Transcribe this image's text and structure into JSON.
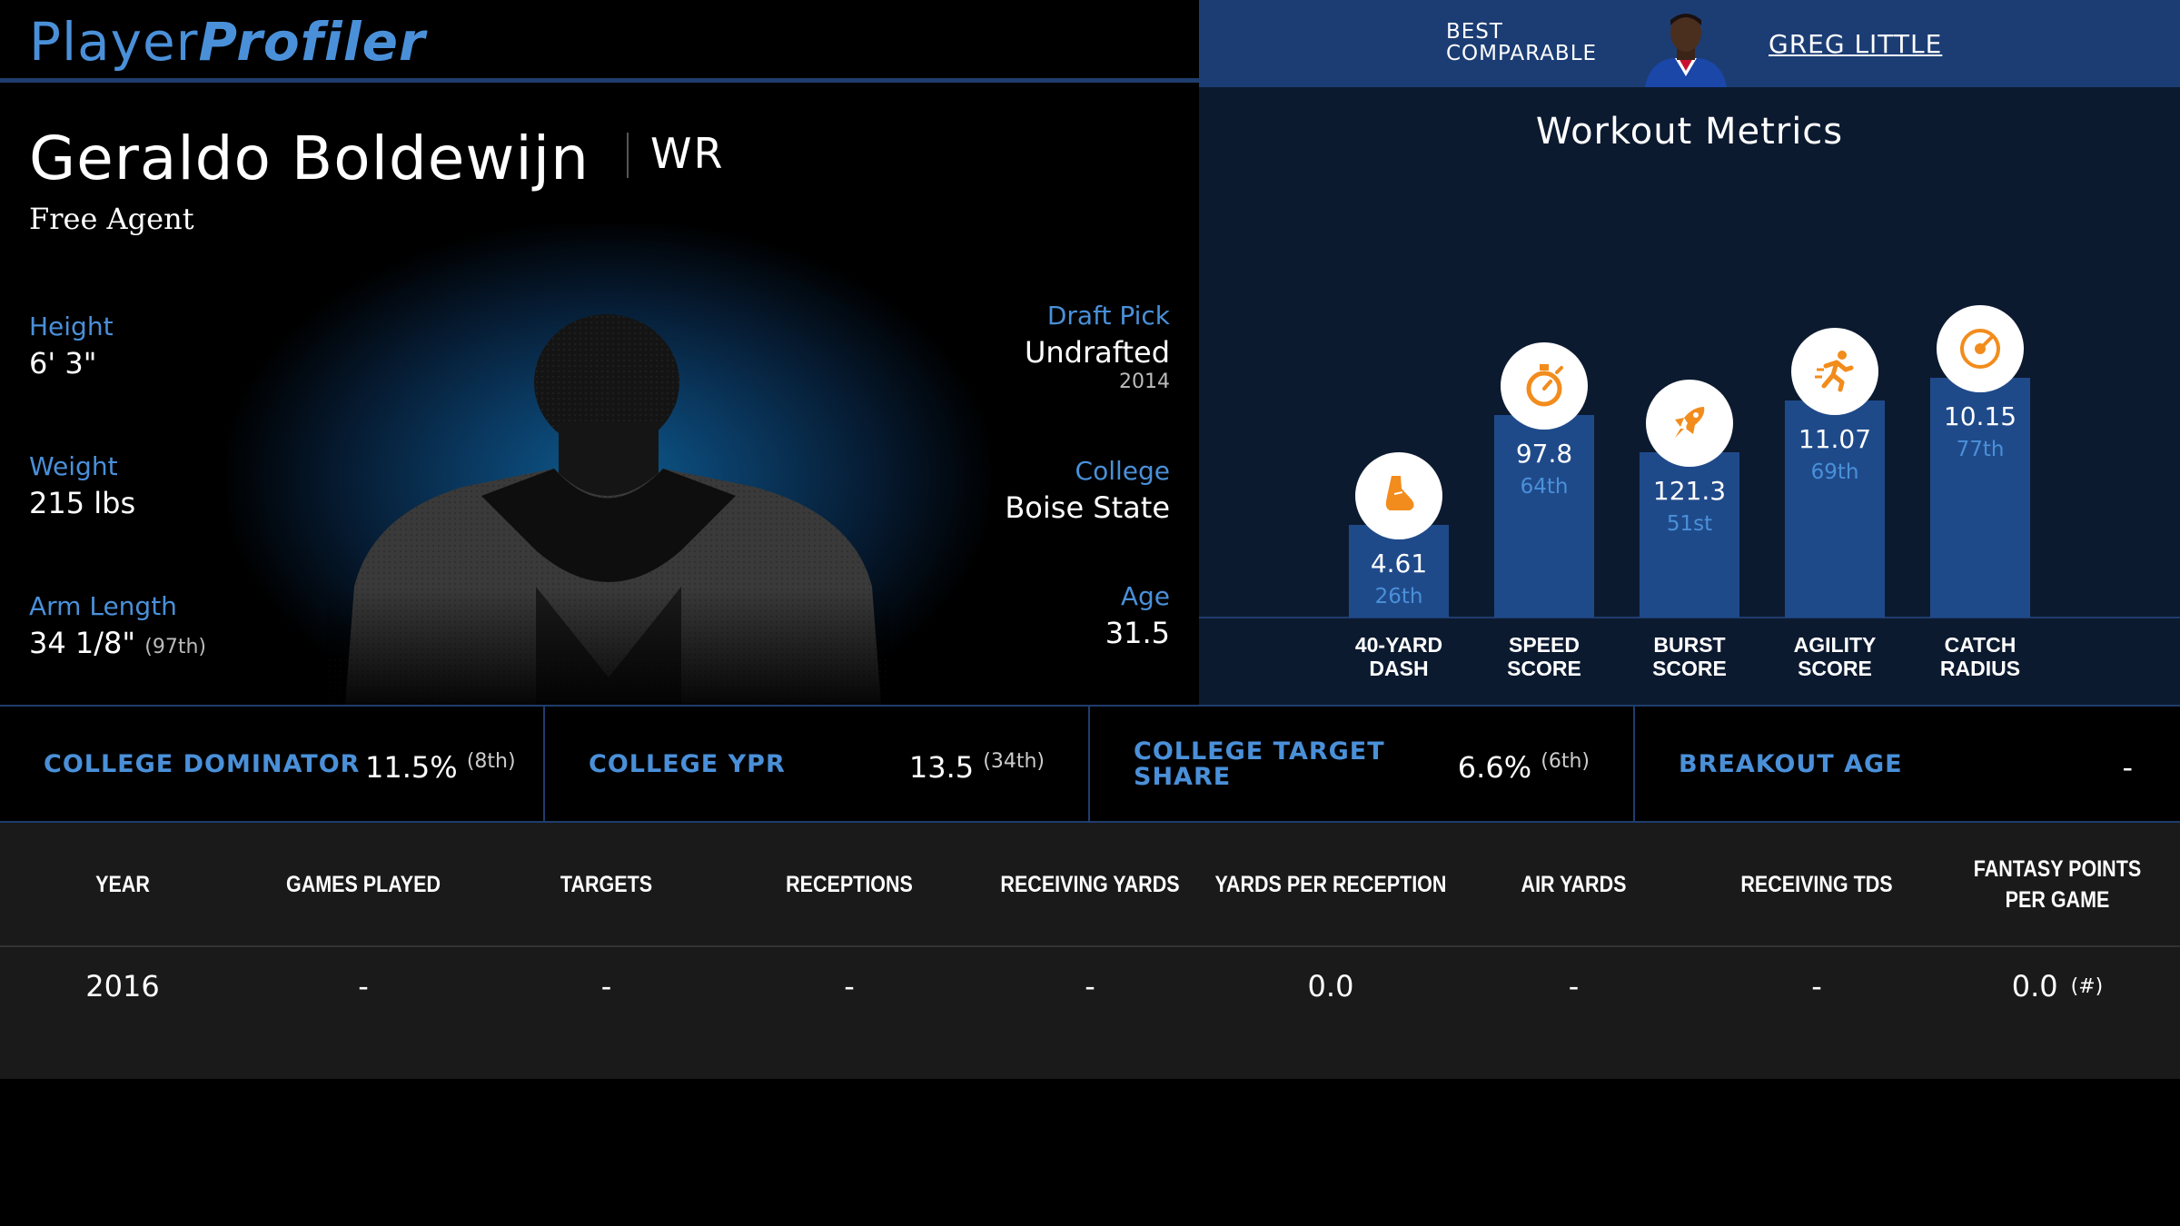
{
  "brand": {
    "part1": "Player",
    "part2": "Profiler"
  },
  "comparable": {
    "label_line1": "BEST",
    "label_line2": "COMPARABLE",
    "name": "GREG LITTLE"
  },
  "player": {
    "name": "Geraldo Boldewijn",
    "position": "WR",
    "team": "Free Agent",
    "height_label": "Height",
    "height": "6' 3\"",
    "weight_label": "Weight",
    "weight": "215 lbs",
    "arm_label": "Arm Length",
    "arm": "34 1/8\"",
    "arm_rank": "(97th)",
    "draft_label": "Draft Pick",
    "draft": "Undrafted",
    "draft_year": "2014",
    "college_label": "College",
    "college": "Boise State",
    "age_label": "Age",
    "age": "31.5"
  },
  "workout": {
    "title": "Workout Metrics",
    "metrics": [
      {
        "label1": "40-YARD",
        "label2": "DASH",
        "value": "4.61",
        "percentile": "26th",
        "pct": 26,
        "icon": "shoe-icon"
      },
      {
        "label1": "SPEED",
        "label2": "SCORE",
        "value": "97.8",
        "percentile": "64th",
        "pct": 64,
        "icon": "stopwatch-icon"
      },
      {
        "label1": "BURST",
        "label2": "SCORE",
        "value": "121.3",
        "percentile": "51st",
        "pct": 51,
        "icon": "rocket-icon"
      },
      {
        "label1": "AGILITY",
        "label2": "SCORE",
        "value": "11.07",
        "percentile": "69th",
        "pct": 69,
        "icon": "runner-icon"
      },
      {
        "label1": "CATCH",
        "label2": "RADIUS",
        "value": "10.15",
        "percentile": "77th",
        "pct": 77,
        "icon": "target-icon"
      }
    ],
    "colors": {
      "bar": "#1f4a8a",
      "circle": "#ffffff",
      "icon": "#f28c1c",
      "pct_text": "#4a90d9"
    }
  },
  "college_metrics": [
    {
      "label1": "COLLEGE DOMINATOR",
      "label2": "",
      "value": "11.5%",
      "rank": "(8th)"
    },
    {
      "label1": "COLLEGE YPR",
      "label2": "",
      "value": "13.5",
      "rank": "(34th)"
    },
    {
      "label1": "COLLEGE TARGET",
      "label2": "SHARE",
      "value": "6.6%",
      "rank": "(6th)"
    },
    {
      "label1": "BREAKOUT AGE",
      "label2": "",
      "value": "-",
      "rank": ""
    }
  ],
  "table": {
    "headers": [
      "YEAR",
      "GAMES PLAYED",
      "TARGETS",
      "RECEPTIONS",
      "RECEIVING YARDS",
      "YARDS PER RECEPTION",
      "AIR YARDS",
      "RECEIVING TDS",
      "FANTASY POINTS PER GAME"
    ],
    "rows": [
      {
        "cells": [
          "2016",
          "-",
          "-",
          "-",
          "-",
          "0.0",
          "-",
          "-",
          "0.0"
        ],
        "fp_note": "(#)"
      }
    ]
  }
}
